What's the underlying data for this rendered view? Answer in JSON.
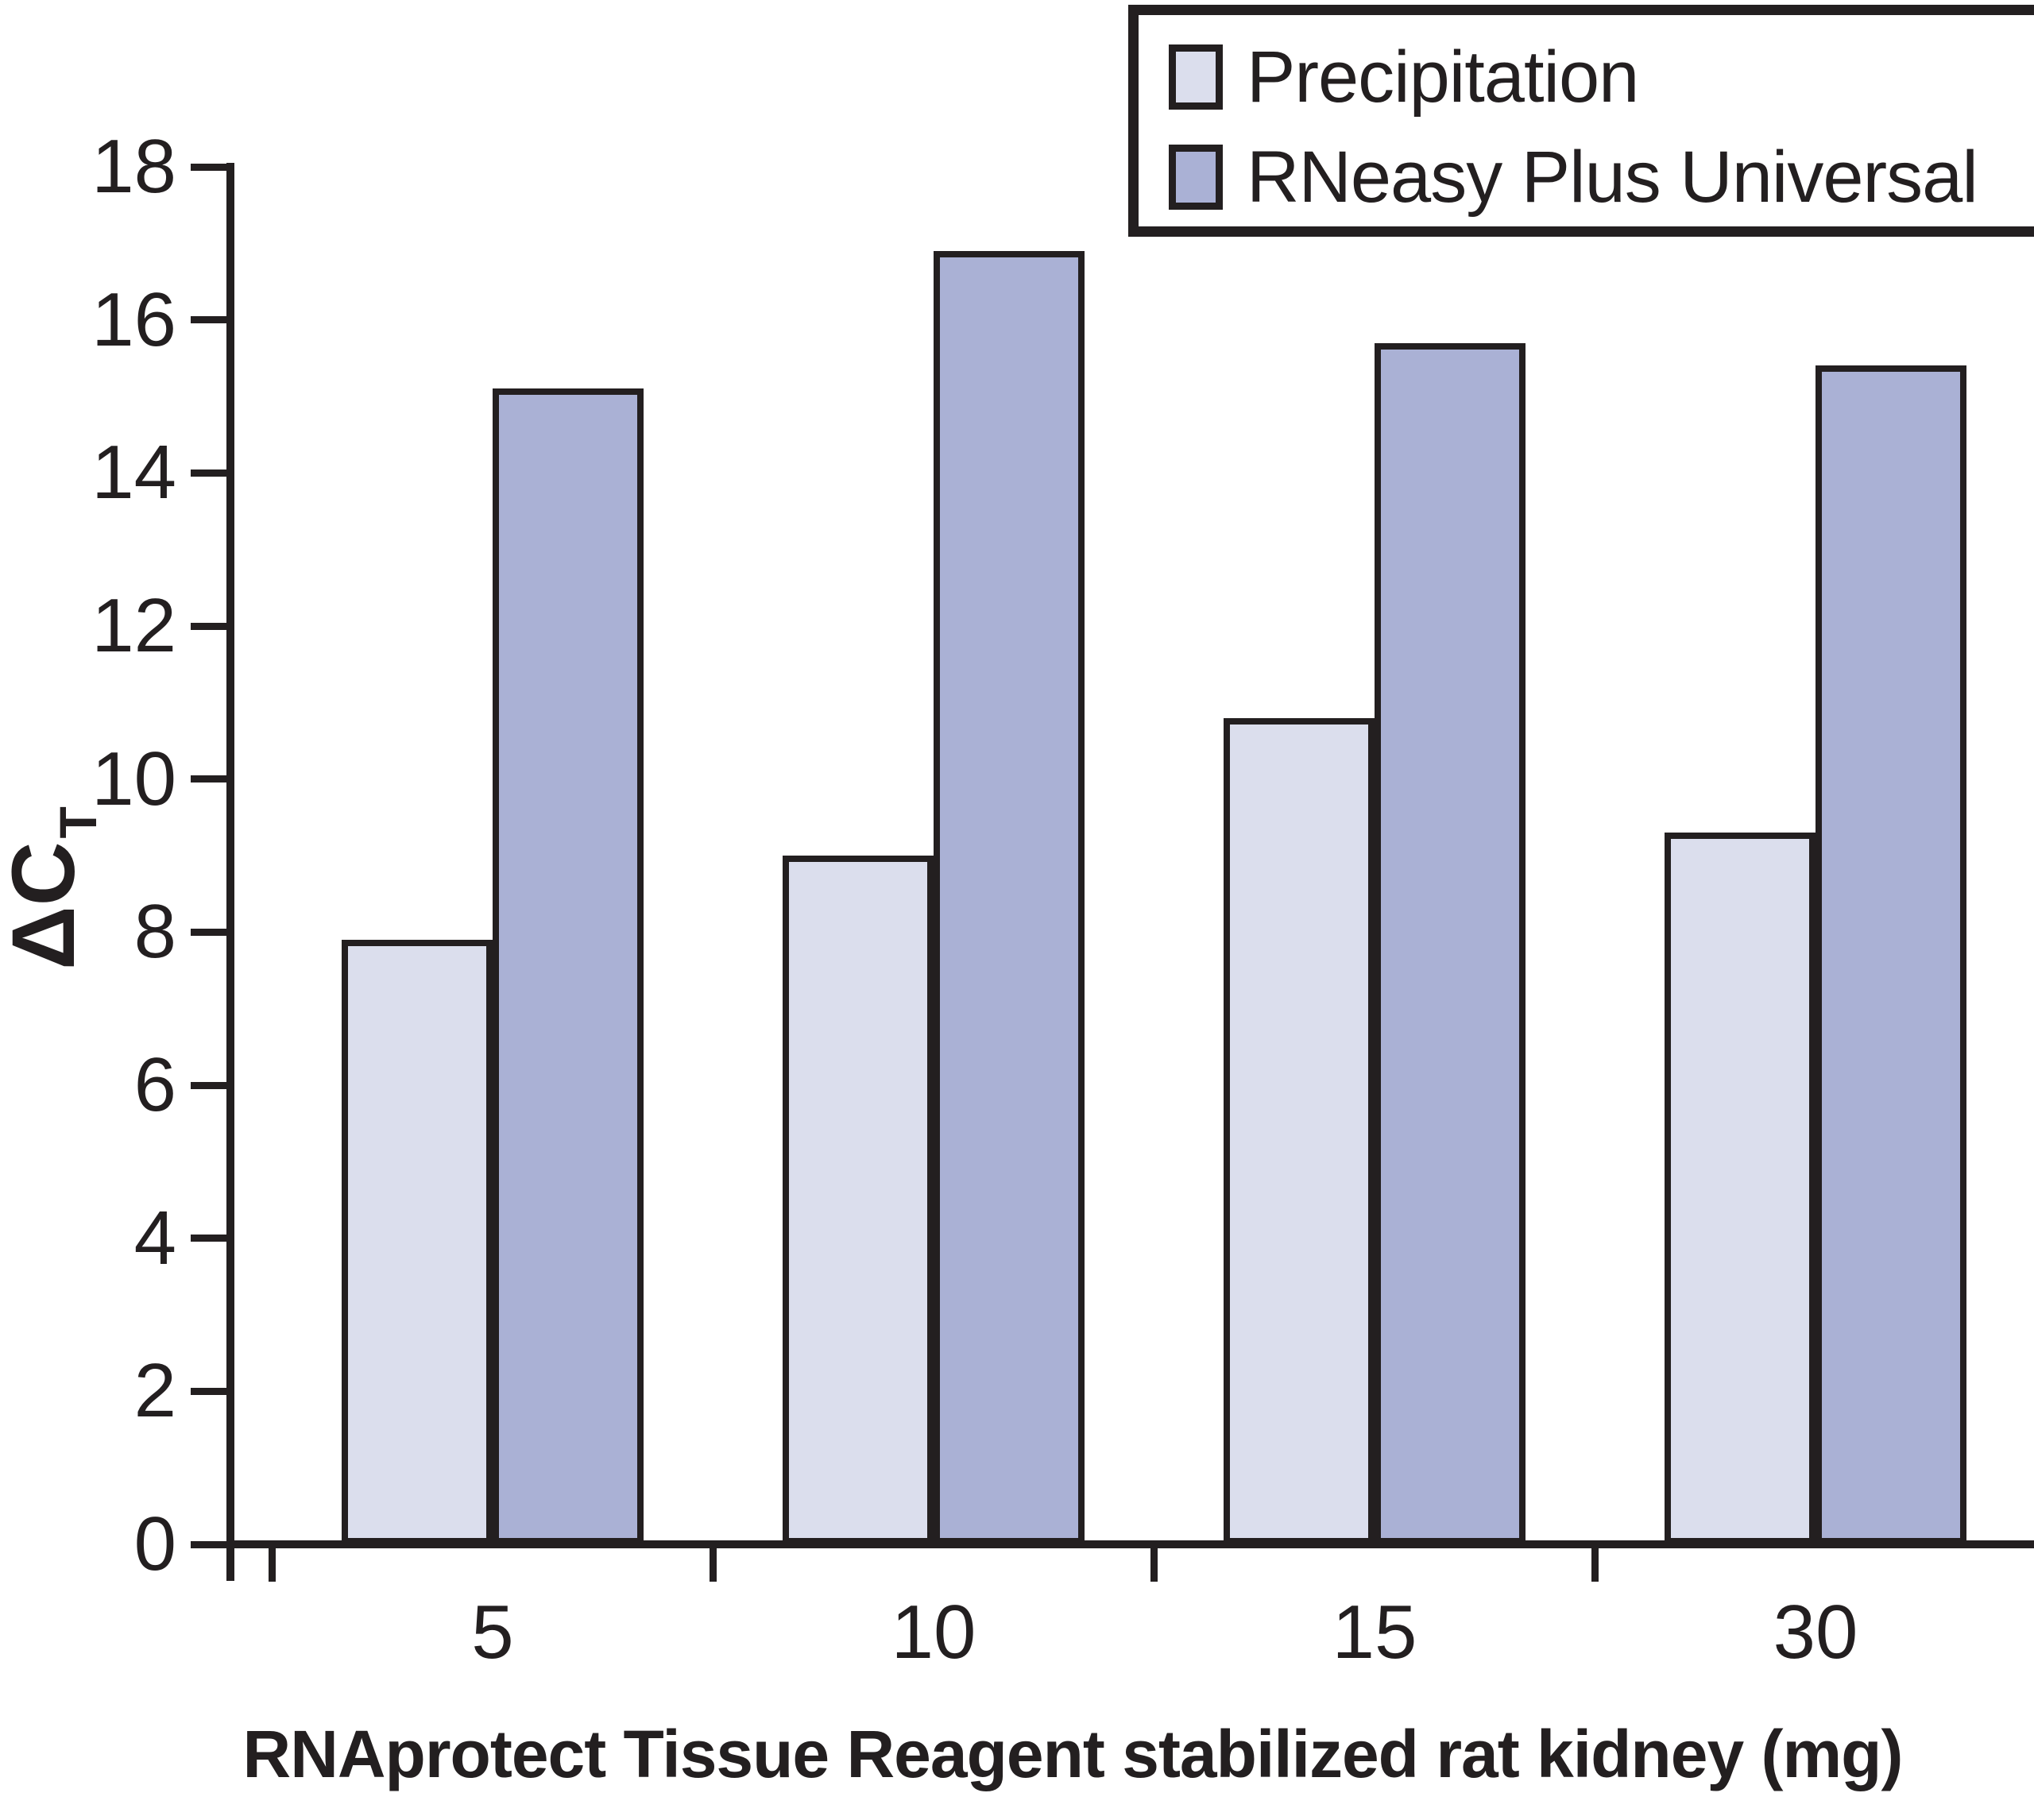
{
  "chart_data": {
    "type": "bar",
    "title": "",
    "categories": [
      "5",
      "10",
      "15",
      "30"
    ],
    "series": [
      {
        "name": "Precipitation",
        "color": "#dbdeed",
        "values": [
          7.9,
          9.0,
          10.8,
          9.3
        ]
      },
      {
        "name": "RNeasy Plus Universal",
        "color": "#aab1d5",
        "values": [
          15.1,
          16.9,
          15.7,
          15.4
        ]
      }
    ],
    "xlabel": "RNAprotect Tissue Reagent stabilized rat kidney (mg)",
    "ylabel": "ΔCT",
    "ylabel_main": "ΔC",
    "ylabel_sub": "T",
    "ylim": [
      0,
      18
    ],
    "ytick_step": 2,
    "yticks": [
      18,
      16,
      14,
      12,
      10,
      8,
      6,
      4,
      2,
      0
    ],
    "grid": false,
    "legend_position": "top-right",
    "axis_color": "#231f20",
    "bar_border_color": "#231f20",
    "background_color": "#ffffff"
  }
}
